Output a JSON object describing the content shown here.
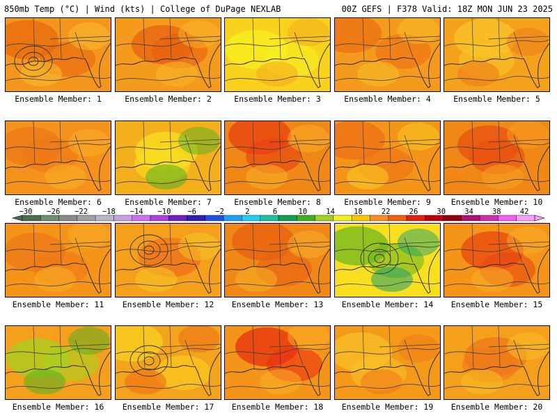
{
  "header": {
    "left": "850mb Temp (°C) | Wind (kts) | College of DuPage NEXLAB",
    "right": "00Z GEFS | F378 Valid: 18Z MON JUN 23 2025"
  },
  "colorbar": {
    "labels": [
      "−30",
      "−26",
      "−22",
      "−18",
      "−14",
      "−10",
      "−6",
      "−2",
      "2",
      "6",
      "10",
      "14",
      "18",
      "22",
      "26",
      "30",
      "34",
      "38",
      "42"
    ],
    "colors": [
      "#4d6b4d",
      "#6f8f6f",
      "#8a8a8a",
      "#a0a0a0",
      "#b8b8c8",
      "#c8a0e0",
      "#d070f0",
      "#b040e0",
      "#7020c0",
      "#3020b0",
      "#2050e0",
      "#20a0f0",
      "#20d0f0",
      "#20c0a0",
      "#10a050",
      "#40b020",
      "#a0d020",
      "#f0f020",
      "#f8c800",
      "#f89020",
      "#f06010",
      "#e02010",
      "#c00010",
      "#900010",
      "#b01070",
      "#d030b0",
      "#f060f0",
      "#f8a0f8"
    ]
  },
  "panels": [
    {
      "label": "Ensemble Member: 1",
      "base": "#f4961c",
      "tint": "#e8680f",
      "hi": "#f8c030",
      "low": true
    },
    {
      "label": "Ensemble Member: 2",
      "base": "#f49a1c",
      "tint": "#e86010",
      "hi": "#f8b828",
      "low": false
    },
    {
      "label": "Ensemble Member: 3",
      "base": "#f8d21c",
      "tint": "#f8f020",
      "hi": "#f4a820",
      "low": false
    },
    {
      "label": "Ensemble Member: 4",
      "base": "#f49a1c",
      "tint": "#ee7016",
      "hi": "#f8c028",
      "low": false
    },
    {
      "label": "Ensemble Member: 5",
      "base": "#f4a21c",
      "tint": "#f8c428",
      "hi": "#ee7818",
      "low": false
    },
    {
      "label": "Ensemble Member: 6",
      "base": "#f4921c",
      "tint": "#ee7818",
      "hi": "#f8b028",
      "low": false
    },
    {
      "label": "Ensemble Member: 7",
      "base": "#f4b01c",
      "tint": "#f8e020",
      "hi": "#50b020",
      "low": false
    },
    {
      "label": "Ensemble Member: 8",
      "base": "#f08818",
      "tint": "#e84010",
      "hi": "#f8b028",
      "low": false
    },
    {
      "label": "Ensemble Member: 9",
      "base": "#f49418",
      "tint": "#ee7016",
      "hi": "#f8d020",
      "low": false
    },
    {
      "label": "Ensemble Member: 10",
      "base": "#f08818",
      "tint": "#e85010",
      "hi": "#f8a020",
      "low": false
    },
    {
      "label": "Ensemble Member: 11",
      "base": "#f49418",
      "tint": "#ee7818",
      "hi": "#f8b028",
      "low": false
    },
    {
      "label": "Ensemble Member: 12",
      "base": "#f4a01c",
      "tint": "#ee7818",
      "hi": "#f8c828",
      "low": true
    },
    {
      "label": "Ensemble Member: 13",
      "base": "#f08818",
      "tint": "#e86010",
      "hi": "#f8b028",
      "low": false
    },
    {
      "label": "Ensemble Member: 14",
      "base": "#f8e020",
      "tint": "#70b820",
      "hi": "#20a070",
      "low": true
    },
    {
      "label": "Ensemble Member: 15",
      "base": "#f49418",
      "tint": "#e84810",
      "hi": "#f8b028",
      "low": false
    },
    {
      "label": "Ensemble Member: 16",
      "base": "#f4a01c",
      "tint": "#a8d020",
      "hi": "#50b020",
      "low": false
    },
    {
      "label": "Ensemble Member: 17",
      "base": "#f4a41c",
      "tint": "#f8d020",
      "hi": "#ee6814",
      "low": true
    },
    {
      "label": "Ensemble Member: 18",
      "base": "#f49418",
      "tint": "#e83010",
      "hi": "#f8b028",
      "low": false
    },
    {
      "label": "Ensemble Member: 19",
      "base": "#f49a18",
      "tint": "#f8c028",
      "hi": "#ee7818",
      "low": false
    },
    {
      "label": "Ensemble Member: 20",
      "base": "#f4a01c",
      "tint": "#ee7818",
      "hi": "#f8c028",
      "low": false
    }
  ]
}
